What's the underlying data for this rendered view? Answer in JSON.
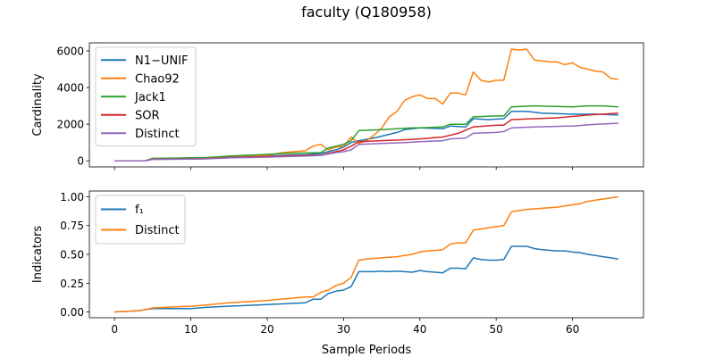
{
  "figure": {
    "title": "faculty (Q180958)"
  },
  "chart_data": [
    {
      "type": "line",
      "ylabel": "Cardinality",
      "xlabel": "",
      "xlim": [
        -3.3,
        69.3
      ],
      "ylim": [
        -330,
        6440
      ],
      "xticks": [
        0,
        10,
        20,
        30,
        40,
        50,
        60
      ],
      "yticks": [
        0,
        2000,
        4000,
        6000
      ],
      "show_xticklabels": false,
      "legend": "upper-left",
      "series": [
        {
          "name": "N1−UNIF",
          "color": "#1f77b4",
          "x": [
            0,
            2,
            4,
            5,
            8,
            10,
            12,
            15,
            20,
            22,
            25,
            27,
            29,
            30,
            31,
            32,
            34,
            36,
            37,
            38,
            40,
            43,
            44,
            46,
            47,
            49,
            51,
            52,
            54,
            56,
            60,
            63,
            66
          ],
          "y": [
            0,
            0,
            0,
            100,
            100,
            120,
            130,
            200,
            260,
            300,
            330,
            400,
            600,
            750,
            1000,
            1100,
            1250,
            1450,
            1550,
            1700,
            1800,
            1750,
            1900,
            1850,
            2300,
            2250,
            2300,
            2700,
            2700,
            2600,
            2550,
            2550,
            2500
          ]
        },
        {
          "name": "Chao92",
          "color": "#ff7f0e",
          "x": [
            0,
            2,
            4,
            5,
            8,
            10,
            12,
            15,
            20,
            22,
            25,
            26,
            27,
            28,
            29,
            30,
            31,
            32,
            33,
            34,
            35,
            36,
            37,
            38,
            39,
            40,
            41,
            42,
            43,
            44,
            45,
            46,
            47,
            48,
            49,
            50,
            51,
            52,
            53,
            54,
            55,
            56,
            57,
            58,
            59,
            60,
            61,
            62,
            63,
            64,
            65,
            66
          ],
          "y": [
            0,
            0,
            0,
            120,
            120,
            130,
            150,
            250,
            300,
            450,
            550,
            800,
            900,
            600,
            750,
            800,
            1300,
            950,
            1100,
            1400,
            1800,
            2400,
            2700,
            3300,
            3500,
            3600,
            3400,
            3400,
            3100,
            3700,
            3700,
            3600,
            4850,
            4400,
            4300,
            4400,
            4400,
            6100,
            6050,
            6100,
            5500,
            5450,
            5400,
            5400,
            5250,
            5350,
            5100,
            5000,
            4900,
            4850,
            4500,
            4450
          ]
        },
        {
          "name": "Jack1",
          "color": "#2ca02c",
          "x": [
            0,
            2,
            4,
            5,
            8,
            10,
            12,
            15,
            20,
            22,
            25,
            27,
            28,
            29,
            30,
            31,
            32,
            35,
            37,
            39,
            40,
            43,
            44,
            46,
            47,
            50,
            51,
            52,
            55,
            60,
            62,
            63,
            64,
            66
          ],
          "y": [
            0,
            0,
            0,
            140,
            150,
            170,
            180,
            260,
            350,
            400,
            430,
            450,
            700,
            800,
            900,
            1100,
            1650,
            1700,
            1750,
            1800,
            1800,
            1850,
            2000,
            2000,
            2400,
            2450,
            2450,
            2950,
            3000,
            2950,
            3000,
            3000,
            3000,
            2950
          ]
        },
        {
          "name": "SOR",
          "color": "#d62728",
          "x": [
            0,
            2,
            4,
            5,
            8,
            10,
            12,
            15,
            20,
            22,
            25,
            27,
            29,
            30,
            31,
            32,
            35,
            38,
            40,
            43,
            45,
            47,
            50,
            51,
            52,
            55,
            58,
            62,
            64,
            66
          ],
          "y": [
            0,
            0,
            0,
            90,
            100,
            110,
            120,
            180,
            230,
            270,
            300,
            320,
            500,
            600,
            800,
            1050,
            1100,
            1150,
            1200,
            1300,
            1500,
            1850,
            1950,
            1950,
            2250,
            2300,
            2350,
            2500,
            2550,
            2600
          ]
        },
        {
          "name": "Distinct",
          "color": "#9467bd",
          "x": [
            0,
            2,
            4,
            5,
            8,
            10,
            12,
            15,
            20,
            22,
            25,
            27,
            29,
            30,
            31,
            32,
            35,
            38,
            40,
            43,
            44,
            46,
            47,
            50,
            51,
            52,
            55,
            60,
            63,
            66
          ],
          "y": [
            0,
            0,
            0,
            80,
            90,
            100,
            110,
            160,
            200,
            230,
            260,
            300,
            450,
            500,
            600,
            900,
            950,
            1000,
            1050,
            1100,
            1200,
            1250,
            1500,
            1550,
            1600,
            1800,
            1850,
            1900,
            2000,
            2050
          ]
        }
      ]
    },
    {
      "type": "line",
      "ylabel": "Indicators",
      "xlabel": "Sample Periods",
      "xlim": [
        -3.3,
        69.3
      ],
      "ylim": [
        -0.05,
        1.05
      ],
      "xticks": [
        0,
        10,
        20,
        30,
        40,
        50,
        60
      ],
      "yticks": [
        0.0,
        0.25,
        0.5,
        0.75,
        1.0
      ],
      "ytick_labels": [
        "0.00",
        "0.25",
        "0.50",
        "0.75",
        "1.00"
      ],
      "legend": "upper-left",
      "series": [
        {
          "name": "f₁",
          "color": "#1f77b4",
          "x": [
            0,
            3,
            4,
            5,
            8,
            10,
            12,
            15,
            20,
            25,
            26,
            27,
            28,
            29,
            30,
            31,
            32,
            34,
            35,
            36,
            37,
            38,
            39,
            40,
            41,
            42,
            43,
            44,
            45,
            46,
            47,
            48,
            49,
            50,
            51,
            52,
            53,
            54,
            55,
            56,
            57,
            58,
            59,
            60,
            61,
            62,
            63,
            64,
            65,
            66
          ],
          "y": [
            0.0,
            0.01,
            0.02,
            0.03,
            0.03,
            0.03,
            0.04,
            0.05,
            0.065,
            0.08,
            0.11,
            0.11,
            0.16,
            0.18,
            0.19,
            0.22,
            0.35,
            0.35,
            0.355,
            0.35,
            0.355,
            0.35,
            0.345,
            0.36,
            0.35,
            0.345,
            0.34,
            0.38,
            0.38,
            0.375,
            0.47,
            0.455,
            0.45,
            0.45,
            0.455,
            0.57,
            0.57,
            0.57,
            0.55,
            0.54,
            0.535,
            0.53,
            0.53,
            0.52,
            0.515,
            0.5,
            0.49,
            0.48,
            0.47,
            0.46
          ]
        },
        {
          "name": "Distinct",
          "color": "#ff7f0e",
          "x": [
            0,
            3,
            4,
            5,
            8,
            10,
            12,
            15,
            20,
            25,
            26,
            27,
            28,
            29,
            30,
            31,
            32,
            33,
            35,
            37,
            38,
            39,
            40,
            41,
            42,
            43,
            44,
            45,
            46,
            47,
            48,
            49,
            50,
            51,
            52,
            53,
            54,
            55,
            56,
            57,
            58,
            59,
            60,
            61,
            62,
            63,
            64,
            65,
            66
          ],
          "y": [
            0.0,
            0.01,
            0.02,
            0.035,
            0.045,
            0.05,
            0.06,
            0.08,
            0.1,
            0.13,
            0.13,
            0.17,
            0.19,
            0.23,
            0.25,
            0.3,
            0.45,
            0.46,
            0.47,
            0.48,
            0.49,
            0.5,
            0.52,
            0.53,
            0.535,
            0.54,
            0.59,
            0.6,
            0.6,
            0.71,
            0.72,
            0.73,
            0.74,
            0.75,
            0.87,
            0.88,
            0.89,
            0.895,
            0.9,
            0.905,
            0.91,
            0.92,
            0.93,
            0.94,
            0.96,
            0.97,
            0.98,
            0.99,
            1.0
          ]
        }
      ]
    }
  ]
}
